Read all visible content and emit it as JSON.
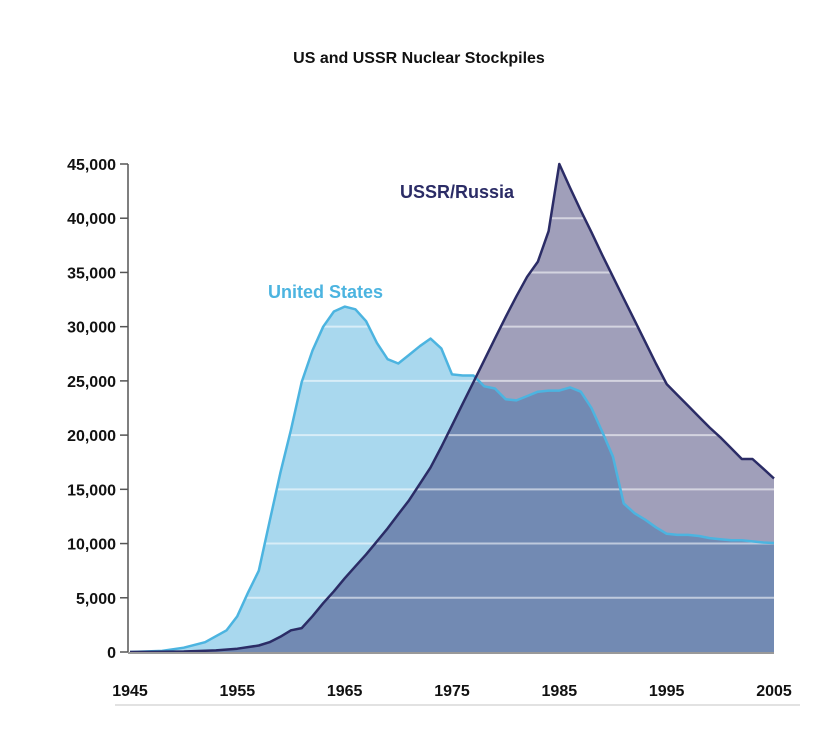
{
  "chart_data": {
    "type": "area",
    "title": "US and USSR Nuclear Stockpiles",
    "xlabel": "",
    "ylabel": "",
    "xlim": [
      1945,
      2005
    ],
    "ylim": [
      0,
      45000
    ],
    "x_ticks": [
      "1945",
      "1955",
      "1965",
      "1975",
      "1985",
      "1995",
      "2005"
    ],
    "y_ticks": [
      "0",
      "5,000",
      "10,000",
      "15,000",
      "20,000",
      "25,000",
      "30,000",
      "35,000",
      "40,000",
      "45,000"
    ],
    "grid": true,
    "colors": {
      "us_line": "#4cb4e0",
      "us_fill": "#a9d8ee",
      "ussr_line": "#2b2c66",
      "ussr_fill": "#a09fba",
      "overlap_fill": "#728ab3"
    },
    "series": [
      {
        "name": "United States",
        "x": [
          1945,
          1948,
          1950,
          1952,
          1954,
          1955,
          1956,
          1957,
          1958,
          1959,
          1960,
          1961,
          1962,
          1963,
          1964,
          1965,
          1966,
          1967,
          1968,
          1969,
          1970,
          1971,
          1972,
          1973,
          1974,
          1975,
          1976,
          1977,
          1978,
          1979,
          1980,
          1981,
          1982,
          1983,
          1984,
          1985,
          1986,
          1987,
          1988,
          1989,
          1990,
          1991,
          1992,
          1993,
          1994,
          1995,
          1996,
          1997,
          1998,
          1999,
          2000,
          2001,
          2002,
          2003,
          2004,
          2005
        ],
        "values": [
          0,
          100,
          400,
          900,
          2000,
          3300,
          5500,
          7500,
          12000,
          16500,
          20500,
          24900,
          27800,
          30000,
          31400,
          31850,
          31600,
          30500,
          28500,
          27000,
          26600,
          27400,
          28200,
          28900,
          28000,
          25600,
          25500,
          25500,
          24500,
          24300,
          23300,
          23200,
          23600,
          24000,
          24100,
          24100,
          24400,
          24000,
          22500,
          20300,
          18000,
          13700,
          12800,
          12200,
          11500,
          10900,
          10800,
          10800,
          10700,
          10500,
          10400,
          10300,
          10300,
          10200,
          10100,
          10050
        ]
      },
      {
        "name": "USSR/Russia",
        "x": [
          1945,
          1950,
          1953,
          1955,
          1957,
          1958,
          1959,
          1960,
          1961,
          1962,
          1963,
          1964,
          1965,
          1966,
          1967,
          1968,
          1969,
          1970,
          1971,
          1972,
          1973,
          1974,
          1975,
          1976,
          1977,
          1978,
          1979,
          1980,
          1981,
          1982,
          1983,
          1984,
          1985,
          1986,
          1987,
          1988,
          1989,
          1990,
          1991,
          1992,
          1993,
          1994,
          1995,
          1996,
          1997,
          1998,
          1999,
          2000,
          2001,
          2002,
          2003,
          2004,
          2005
        ],
        "values": [
          0,
          50,
          150,
          300,
          600,
          900,
          1400,
          2000,
          2200,
          3300,
          4500,
          5600,
          6800,
          7900,
          9000,
          10200,
          11400,
          12700,
          14000,
          15500,
          17000,
          18900,
          20900,
          22900,
          24900,
          26900,
          28900,
          30900,
          32800,
          34600,
          36000,
          38800,
          45000,
          42800,
          40700,
          38700,
          36600,
          34600,
          32600,
          30600,
          28600,
          26600,
          24700,
          23700,
          22700,
          21700,
          20700,
          19800,
          18800,
          17800,
          17800,
          16900,
          16000
        ]
      }
    ],
    "annotations": [
      "USSR/Russia",
      "United States"
    ]
  }
}
